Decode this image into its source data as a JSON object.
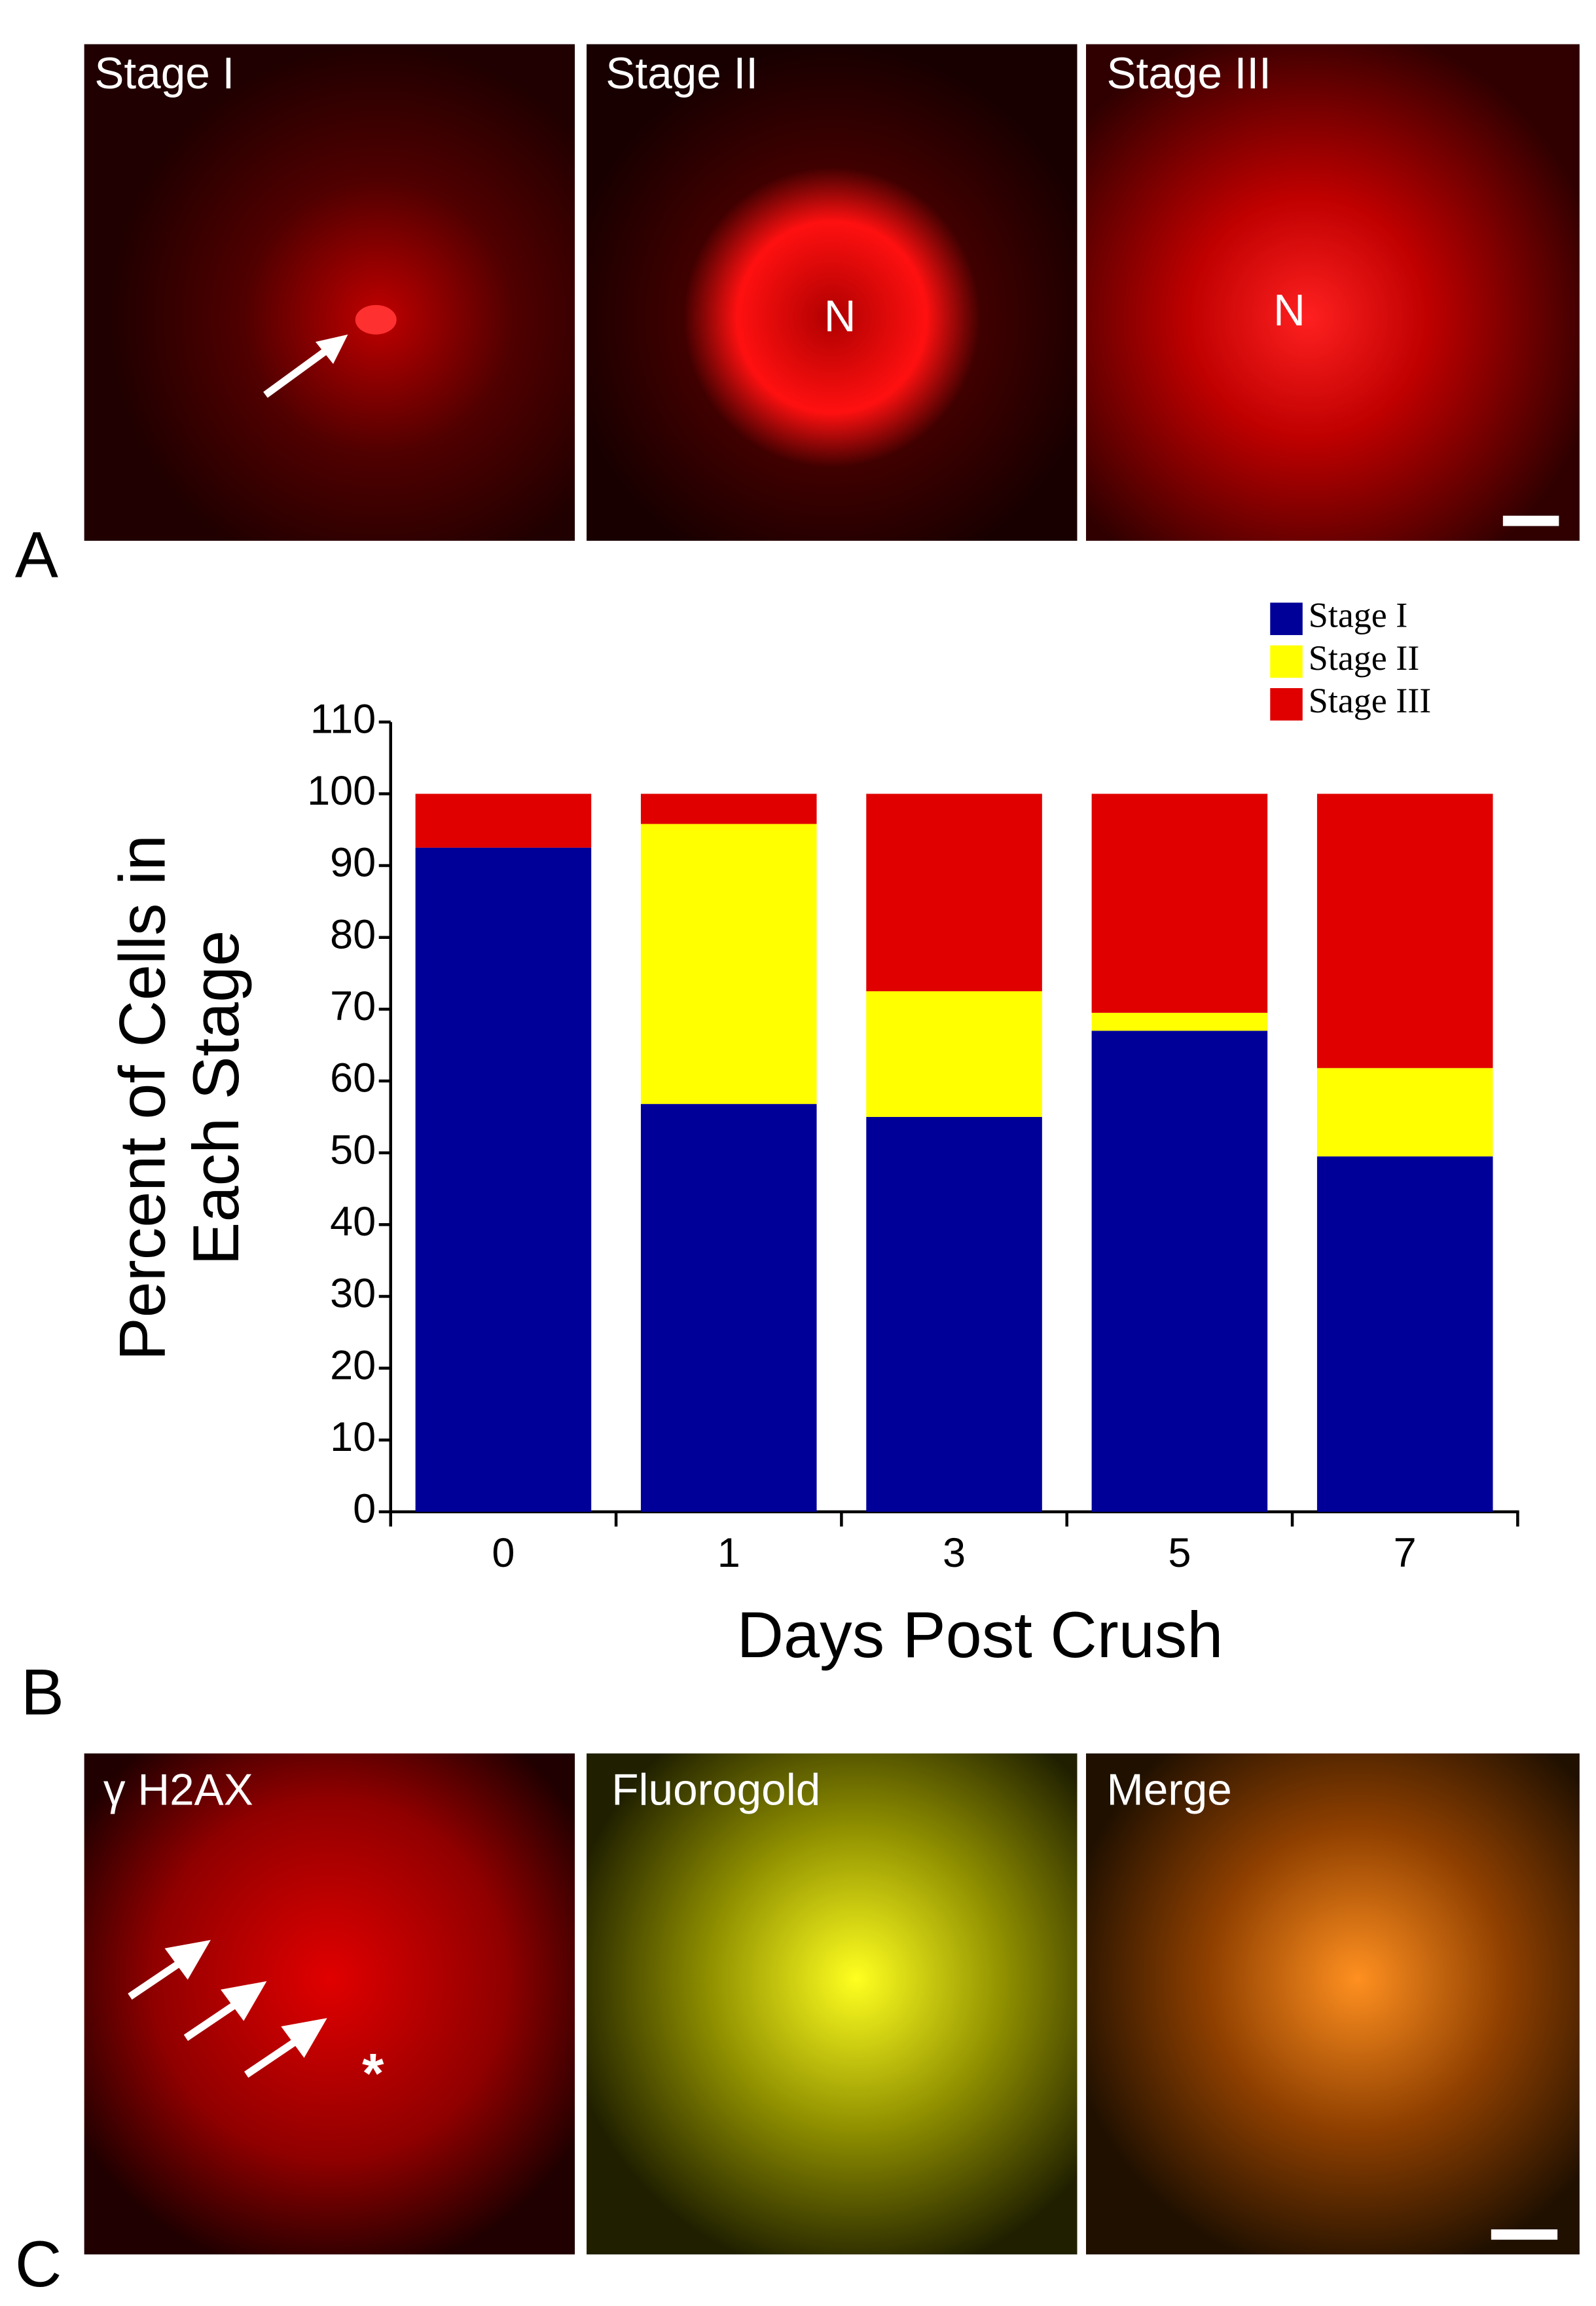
{
  "chart_data": {
    "type": "bar",
    "stacked": true,
    "xlabel": "Days Post Crush",
    "ylabel": [
      "Percent of Cells in",
      "Each Stage"
    ],
    "categories": [
      "0",
      "1",
      "3",
      "5",
      "7"
    ],
    "series": [
      {
        "name": "Stage I",
        "color": "#000099",
        "values": [
          92.5,
          56.8,
          55,
          67,
          49.5
        ]
      },
      {
        "name": "Stage II",
        "color": "#ffff00",
        "values": [
          0,
          39,
          17.5,
          2.5,
          12.3
        ]
      },
      {
        "name": "Stage III",
        "color": "#e00000",
        "values": [
          7.5,
          4.2,
          27.5,
          30.5,
          38.2
        ]
      }
    ],
    "ylim": [
      0,
      110
    ],
    "yticks": [
      0,
      10,
      20,
      30,
      40,
      50,
      60,
      70,
      80,
      90,
      100,
      110
    ],
    "legend": "top-right"
  },
  "panels": {
    "a": {
      "letter": "A",
      "images": [
        {
          "title": "Stage I"
        },
        {
          "title": "Stage II",
          "marker": "N"
        },
        {
          "title": "Stage III",
          "marker": "N"
        }
      ]
    },
    "b": {
      "letter": "B"
    },
    "c": {
      "letter": "C",
      "images": [
        {
          "title": "γ H2AX",
          "marker": "*"
        },
        {
          "title": "Fluorogold"
        },
        {
          "title": "Merge"
        }
      ]
    }
  }
}
